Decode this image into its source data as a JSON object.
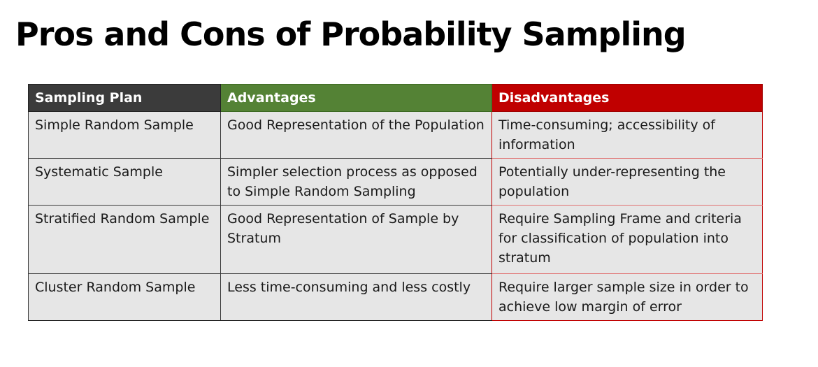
{
  "title": "Pros and Cons of Probability Sampling",
  "table": {
    "headers": [
      "Sampling Plan",
      "Advantages",
      "Disadvantages"
    ],
    "header_colors": [
      "#3b3b3b",
      "#548235",
      "#c00000"
    ],
    "rows": [
      {
        "plan": "Simple Random Sample",
        "advantages": "Good Representation of the Population",
        "disadvantages": "Time-consuming; accessibility of information"
      },
      {
        "plan": "Systematic Sample",
        "advantages": "Simpler selection process as opposed to Simple Random Sampling",
        "disadvantages": "Potentially under-representing the population"
      },
      {
        "plan": "Stratified Random Sample",
        "advantages": "Good Representation of Sample by Stratum",
        "disadvantages": "Require Sampling Frame and criteria for classification of population into stratum"
      },
      {
        "plan": "Cluster Random Sample",
        "advantages": "Less time-consuming and less costly",
        "disadvantages": "Require larger sample size in order to achieve low margin of error"
      }
    ]
  }
}
